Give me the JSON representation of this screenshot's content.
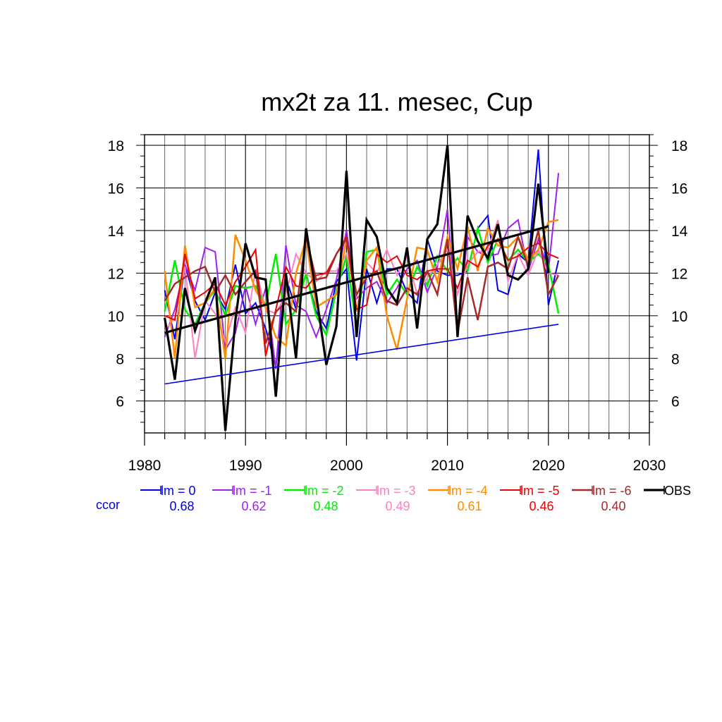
{
  "chart_data": {
    "type": "line",
    "title": "mx2t za 11. mesec, Cup",
    "xlim": [
      1980,
      2030
    ],
    "ylim": [
      4.5,
      18.5
    ],
    "xticks": [
      1980,
      1990,
      2000,
      2010,
      2020,
      2030
    ],
    "yticks": [
      6,
      8,
      10,
      12,
      14,
      16,
      18
    ],
    "grid": true,
    "legend_position": "bottom",
    "ccor_label": "ccor",
    "x": [
      1982,
      1983,
      1984,
      1985,
      1986,
      1987,
      1988,
      1989,
      1990,
      1991,
      1992,
      1993,
      1994,
      1995,
      1996,
      1997,
      1998,
      1999,
      2000,
      2001,
      2002,
      2003,
      2004,
      2005,
      2006,
      2007,
      2008,
      2009,
      2010,
      2011,
      2012,
      2013,
      2014,
      2015,
      2016,
      2017,
      2018,
      2019,
      2020,
      2021
    ],
    "series": [
      {
        "name": "lm = 0",
        "ccor": "0.68",
        "color": "#0000ee",
        "width": 2,
        "values": [
          11.2,
          8.9,
          12.4,
          10.7,
          9.8,
          11.1,
          10.3,
          12.4,
          10.1,
          10.6,
          9.4,
          7.6,
          11.8,
          10.3,
          12.0,
          10.2,
          9.4,
          11.6,
          12.2,
          7.9,
          12.2,
          10.6,
          12.2,
          12.2,
          11.1,
          10.6,
          13.6,
          12.1,
          11.9,
          11.9,
          12.1,
          14.1,
          14.7,
          11.2,
          11.0,
          12.9,
          12.5,
          17.8,
          10.5,
          12.6
        ]
      },
      {
        "name": "lm = -1",
        "ccor": "0.62",
        "color": "#a020f0",
        "width": 2,
        "values": [
          9.0,
          10.3,
          12.4,
          11.2,
          13.2,
          13.0,
          8.4,
          9.2,
          11.4,
          9.6,
          11.3,
          7.5,
          13.3,
          10.5,
          10.2,
          9.0,
          10.3,
          11.7,
          14.0,
          10.8,
          11.3,
          11.6,
          10.6,
          11.3,
          12.2,
          12.6,
          11.1,
          12.3,
          15.0,
          9.2,
          13.7,
          13.0,
          12.8,
          12.9,
          14.1,
          14.5,
          12.1,
          13.6,
          12.1,
          16.7
        ]
      },
      {
        "name": "lm = -2",
        "ccor": "0.48",
        "color": "#00ee00",
        "width": 2.5,
        "values": [
          10.2,
          12.6,
          10.3,
          9.6,
          10.6,
          11.2,
          10.0,
          11.4,
          11.3,
          11.4,
          10.5,
          12.9,
          9.6,
          10.3,
          12.0,
          10.0,
          9.1,
          11.2,
          12.8,
          9.4,
          13.0,
          13.1,
          11.0,
          11.7,
          11.0,
          12.3,
          11.4,
          12.8,
          12.1,
          12.7,
          12.1,
          14.1,
          12.5,
          13.6,
          12.6,
          13.1,
          12.5,
          12.9,
          12.4,
          10.1
        ]
      },
      {
        "name": "lm = -3",
        "ccor": "0.49",
        "color": "#ff7fbf",
        "width": 2,
        "values": [
          9.3,
          9.9,
          12.3,
          8.0,
          10.7,
          10.1,
          8.8,
          10.4,
          9.2,
          12.2,
          10.3,
          10.1,
          11.0,
          12.9,
          12.0,
          11.6,
          12.1,
          12.1,
          12.9,
          10.9,
          12.5,
          12.0,
          13.1,
          11.9,
          12.8,
          11.0,
          11.8,
          12.4,
          13.1,
          11.0,
          12.4,
          13.0,
          13.1,
          14.5,
          11.6,
          12.9,
          11.9,
          13.1,
          12.0,
          11.9
        ]
      },
      {
        "name": "lm = -4",
        "ccor": "0.61",
        "color": "#ff8c00",
        "width": 2.5,
        "values": [
          12.1,
          8.0,
          13.3,
          10.4,
          10.6,
          11.3,
          8.0,
          13.8,
          12.6,
          11.2,
          10.4,
          9.0,
          8.6,
          12.0,
          13.6,
          10.4,
          10.7,
          11.0,
          13.6,
          10.2,
          12.6,
          13.2,
          10.0,
          8.4,
          10.8,
          13.2,
          13.1,
          11.6,
          13.7,
          12.2,
          14.2,
          12.1,
          14.1,
          13.3,
          13.2,
          13.7,
          12.6,
          13.1,
          14.4,
          14.5
        ]
      },
      {
        "name": "lm = -5",
        "ccor": "0.46",
        "color": "#ee0000",
        "width": 2,
        "values": [
          10.0,
          9.8,
          12.9,
          10.8,
          11.1,
          11.5,
          10.5,
          11.6,
          12.3,
          13.1,
          8.1,
          10.3,
          12.3,
          11.4,
          11.3,
          11.9,
          12.0,
          12.9,
          13.7,
          10.3,
          10.5,
          12.9,
          12.5,
          12.8,
          11.9,
          11.7,
          12.1,
          12.2,
          12.2,
          11.3,
          12.6,
          12.3,
          13.3,
          13.6,
          12.6,
          12.8,
          13.2,
          13.4,
          12.9,
          12.7
        ]
      },
      {
        "name": "lm = -6",
        "ccor": "0.40",
        "color": "#a52a2a",
        "width": 2.5,
        "values": [
          10.7,
          11.5,
          11.8,
          12.1,
          12.3,
          11.1,
          11.9,
          11.0,
          11.6,
          12.1,
          8.7,
          10.2,
          10.6,
          10.2,
          13.7,
          11.7,
          11.8,
          12.9,
          13.6,
          11.0,
          11.8,
          12.1,
          10.7,
          10.5,
          11.3,
          11.0,
          12.1,
          11.0,
          13.6,
          9.2,
          11.8,
          9.8,
          12.3,
          12.5,
          12.2,
          13.7,
          12.3,
          14.0,
          11.0,
          11.9
        ]
      },
      {
        "name": "OBS",
        "ccor": "",
        "color": "#000000",
        "width": 3.2,
        "values": [
          9.9,
          7.0,
          11.3,
          9.3,
          10.6,
          11.8,
          4.6,
          9.8,
          13.4,
          11.8,
          11.7,
          6.2,
          12.0,
          8.0,
          14.1,
          11.0,
          7.7,
          9.5,
          16.8,
          9.0,
          14.5,
          13.7,
          11.3,
          10.6,
          13.2,
          9.4,
          13.6,
          14.3,
          18.0,
          9.0,
          14.7,
          13.5,
          12.7,
          14.3,
          11.9,
          11.7,
          12.2,
          16.2,
          12.0,
          null
        ]
      }
    ],
    "trend_lines": [
      {
        "name": "OBS trend",
        "color": "#000000",
        "width": 3.2,
        "x": [
          1982,
          2020
        ],
        "y": [
          9.2,
          14.2
        ]
      },
      {
        "name": "lm = 0 trend",
        "color": "#0000ee",
        "width": 1.6,
        "x": [
          1982,
          2021
        ],
        "y": [
          6.8,
          9.6
        ]
      }
    ]
  }
}
